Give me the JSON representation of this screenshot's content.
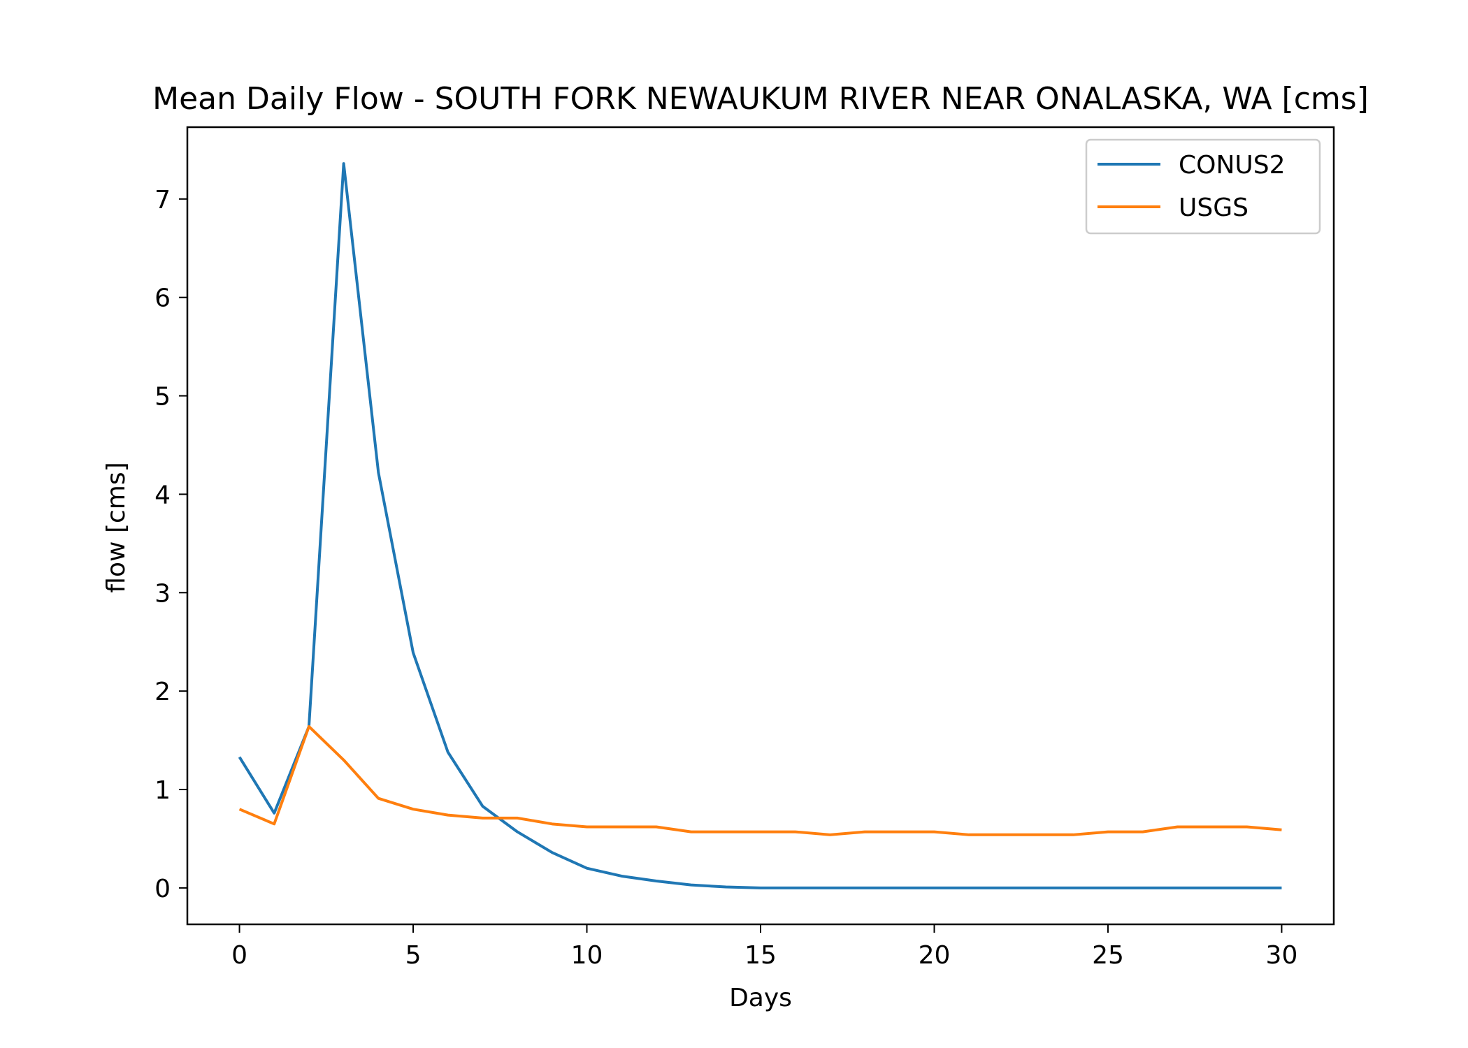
{
  "chart_data": {
    "type": "line",
    "title": "Mean Daily Flow - SOUTH FORK NEWAUKUM RIVER NEAR ONALASKA, WA [cms]",
    "xlabel": "Days",
    "ylabel": "flow [cms]",
    "xlim": [
      -1.5,
      31.5
    ],
    "ylim": [
      -0.37,
      7.73
    ],
    "xticks": [
      0,
      5,
      10,
      15,
      20,
      25,
      30
    ],
    "yticks": [
      0,
      1,
      2,
      3,
      4,
      5,
      6,
      7
    ],
    "grid": false,
    "legend_position": "top-right",
    "x": [
      0,
      1,
      2,
      3,
      4,
      5,
      6,
      7,
      8,
      9,
      10,
      11,
      12,
      13,
      14,
      15,
      16,
      17,
      18,
      19,
      20,
      21,
      22,
      23,
      24,
      25,
      26,
      27,
      28,
      29,
      30
    ],
    "series": [
      {
        "name": "CONUS2",
        "color": "#1f77b4",
        "values": [
          1.33,
          0.76,
          1.64,
          7.36,
          4.22,
          2.39,
          1.38,
          0.83,
          0.57,
          0.36,
          0.2,
          0.12,
          0.07,
          0.03,
          0.01,
          0,
          0,
          0,
          0,
          0,
          0,
          0,
          0,
          0,
          0,
          0,
          0,
          0,
          0,
          0,
          0
        ]
      },
      {
        "name": "USGS",
        "color": "#ff7f0e",
        "values": [
          0.8,
          0.65,
          1.64,
          1.3,
          0.91,
          0.8,
          0.74,
          0.71,
          0.71,
          0.65,
          0.62,
          0.62,
          0.62,
          0.57,
          0.57,
          0.57,
          0.57,
          0.54,
          0.57,
          0.57,
          0.57,
          0.54,
          0.54,
          0.54,
          0.54,
          0.57,
          0.57,
          0.62,
          0.62,
          0.62,
          0.59
        ]
      }
    ]
  }
}
